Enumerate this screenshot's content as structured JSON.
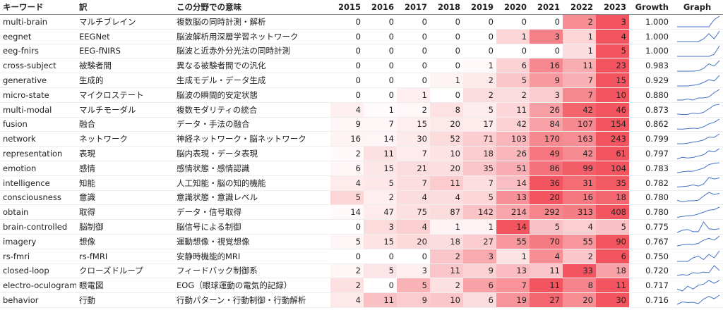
{
  "table": {
    "header": [
      "キーワード",
      "訳",
      "この分野での意味",
      "2015",
      "2016",
      "2017",
      "2018",
      "2019",
      "2020",
      "2021",
      "2022",
      "2023",
      "Growth",
      "Graph"
    ],
    "rows": [
      {
        "keyword": "multi-brain",
        "translation": "マルチブレイン",
        "meaning": "複数脳の同時計測・解析",
        "counts": [
          0,
          0,
          0,
          0,
          0,
          0,
          0,
          2,
          3
        ],
        "growth": "1.000"
      },
      {
        "keyword": "eegnet",
        "translation": "EEGNet",
        "meaning": "脳波解析用深層学習ネットワーク",
        "counts": [
          0,
          0,
          0,
          0,
          0,
          1,
          3,
          1,
          4
        ],
        "growth": "1.000"
      },
      {
        "keyword": "eeg-fnirs",
        "translation": "EEG-fNIRS",
        "meaning": "脳波と近赤外分光法の同時計測",
        "counts": [
          0,
          0,
          0,
          0,
          0,
          0,
          0,
          1,
          5
        ],
        "growth": "1.000"
      },
      {
        "keyword": "cross-subject",
        "translation": "被験者間",
        "meaning": "異なる被験者間での汎化",
        "counts": [
          0,
          0,
          0,
          0,
          1,
          6,
          16,
          11,
          23
        ],
        "growth": "0.983"
      },
      {
        "keyword": "generative",
        "translation": "生成的",
        "meaning": "生成モデル・データ生成",
        "counts": [
          0,
          0,
          0,
          1,
          2,
          5,
          9,
          7,
          15
        ],
        "growth": "0.929"
      },
      {
        "keyword": "micro-state",
        "translation": "マイクロステート",
        "meaning": "脳波の瞬間的安定状態",
        "counts": [
          0,
          0,
          1,
          0,
          2,
          2,
          3,
          7,
          10
        ],
        "growth": "0.880"
      },
      {
        "keyword": "multi-modal",
        "translation": "マルチモーダル",
        "meaning": "複数モダリティの統合",
        "counts": [
          4,
          1,
          2,
          8,
          5,
          11,
          26,
          42,
          46
        ],
        "growth": "0.873"
      },
      {
        "keyword": "fusion",
        "translation": "融合",
        "meaning": "データ・手法の融合",
        "counts": [
          9,
          7,
          15,
          20,
          17,
          42,
          84,
          107,
          154
        ],
        "growth": "0.862"
      },
      {
        "keyword": "network",
        "translation": "ネットワーク",
        "meaning": "神経ネットワーク・脳ネットワーク",
        "counts": [
          16,
          14,
          30,
          52,
          71,
          103,
          170,
          163,
          243
        ],
        "growth": "0.799"
      },
      {
        "keyword": "representation",
        "translation": "表現",
        "meaning": "脳内表現・データ表現",
        "counts": [
          2,
          11,
          7,
          10,
          18,
          26,
          49,
          42,
          61
        ],
        "growth": "0.797"
      },
      {
        "keyword": "emotion",
        "translation": "感情",
        "meaning": "感情状態・感情認識",
        "counts": [
          6,
          15,
          21,
          20,
          35,
          51,
          86,
          99,
          104
        ],
        "growth": "0.783"
      },
      {
        "keyword": "intelligence",
        "translation": "知能",
        "meaning": "人工知能・脳の知的機能",
        "counts": [
          4,
          5,
          7,
          11,
          7,
          14,
          36,
          31,
          35
        ],
        "growth": "0.782"
      },
      {
        "keyword": "consciousness",
        "translation": "意識",
        "meaning": "意識状態・意識レベル",
        "counts": [
          5,
          2,
          4,
          4,
          5,
          13,
          20,
          16,
          18
        ],
        "growth": "0.780"
      },
      {
        "keyword": "obtain",
        "translation": "取得",
        "meaning": "データ・信号取得",
        "counts": [
          14,
          47,
          75,
          87,
          142,
          214,
          292,
          313,
          408
        ],
        "growth": "0.780"
      },
      {
        "keyword": "brain-controlled",
        "translation": "脳制御",
        "meaning": "脳信号による制御",
        "counts": [
          0,
          3,
          4,
          1,
          1,
          14,
          5,
          4,
          5
        ],
        "growth": "0.775"
      },
      {
        "keyword": "imagery",
        "translation": "想像",
        "meaning": "運動想像・視覚想像",
        "counts": [
          5,
          15,
          20,
          18,
          27,
          55,
          70,
          55,
          90
        ],
        "growth": "0.767"
      },
      {
        "keyword": "rs-fmri",
        "translation": "rs-fMRI",
        "meaning": "安静時機能的MRI",
        "counts": [
          0,
          0,
          0,
          2,
          3,
          1,
          4,
          2,
          6
        ],
        "growth": "0.750"
      },
      {
        "keyword": "closed-loop",
        "translation": "クローズドループ",
        "meaning": "フィードバック制御系",
        "counts": [
          2,
          5,
          3,
          11,
          9,
          13,
          11,
          33,
          18
        ],
        "growth": "0.720"
      },
      {
        "keyword": "electro-oculogram",
        "translation": "眼電図",
        "meaning": "EOG（眼球運動の電気的記録）",
        "counts": [
          2,
          0,
          5,
          2,
          6,
          7,
          11,
          8,
          11
        ],
        "growth": "0.717"
      },
      {
        "keyword": "behavior",
        "translation": "行動",
        "meaning": "行動パターン・行動制御・行動解析",
        "counts": [
          4,
          11,
          9,
          10,
          6,
          19,
          27,
          20,
          30
        ],
        "growth": "0.716"
      }
    ]
  }
}
